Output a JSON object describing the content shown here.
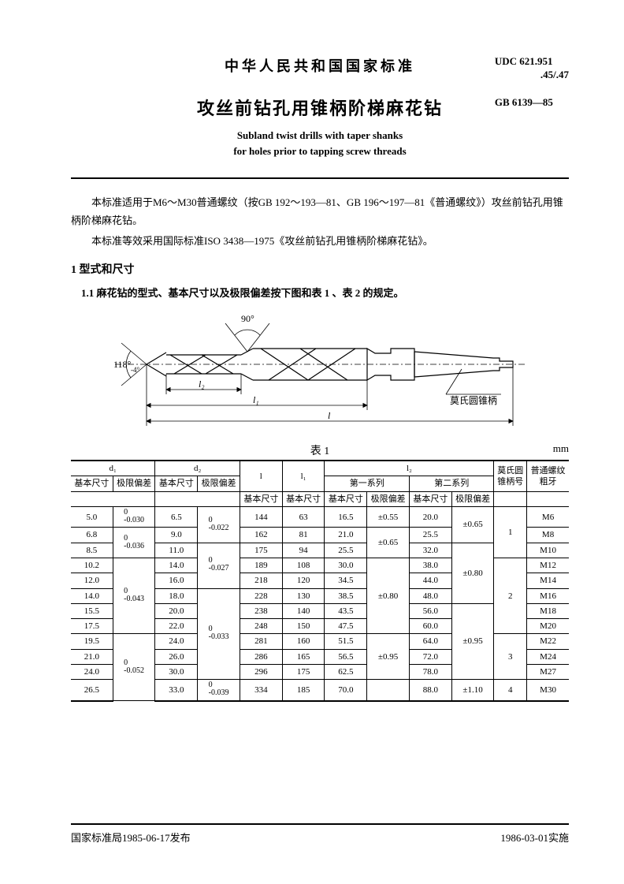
{
  "header": {
    "country_title": "中华人民共和国国家标准",
    "doc_title": "攻丝前钻孔用锥柄阶梯麻花钻",
    "eng_title_l1": "Subland twist drills with taper shanks",
    "eng_title_l2": "for holes prior to tapping screw threads",
    "udc_l1": "UDC 621.951",
    "udc_l2": ".45/.47",
    "gb_code": "GB 6139—85"
  },
  "body": {
    "p1": "本标准适用于M6～M30普通螺纹（按GB 192～193—81、GB 196～197—81《普通螺纹》）攻丝前钻孔用锥柄阶梯麻花钻。",
    "p2": "本标准等效采用国际标准ISO 3438—1975《攻丝前钻孔用锥柄阶梯麻花钻》。",
    "sec1": "1  型式和尺寸",
    "sub11": "1.1  麻花钻的型式、基本尺寸以及极限偏差按下图和表 1 、表 2 的规定。"
  },
  "diagram": {
    "angle_left": "118°",
    "angle_tol": "-4°",
    "angle_top": "90°",
    "dim_l2": "l₂",
    "dim_l1": "l₁",
    "dim_l": "l",
    "callout": "莫氏圆锥柄",
    "stroke": "#000000",
    "bg": "#ffffff"
  },
  "table": {
    "caption": "表 1",
    "unit": "mm",
    "head": {
      "d1": "d₁",
      "d2": "d₂",
      "l": "l",
      "l1": "l₁",
      "l2": "l₂",
      "series1": "第一系列",
      "series2": "第二系列",
      "morse": "莫氏圆",
      "morse2": "锥柄号",
      "thread1": "普通螺纹",
      "thread2": "粗牙",
      "basic": "基本尺寸",
      "tol": "极限偏差"
    },
    "tol_d1": [
      {
        "up": "0",
        "dn": "-0.030",
        "span": 1
      },
      {
        "up": "0",
        "dn": "-0.036",
        "span": 2
      },
      {
        "up": "0",
        "dn": "-0.043",
        "span": 5
      },
      {
        "up": "0",
        "dn": "-0.052",
        "span": 4
      }
    ],
    "tol_d2": [
      {
        "up": "0",
        "dn": "-0.022",
        "span": 2
      },
      {
        "up": "0",
        "dn": "-0.027",
        "span": 3
      },
      {
        "up": "0",
        "dn": "-0.033",
        "span": 6
      },
      {
        "up": "0",
        "dn": "-0.039",
        "span": 1
      }
    ],
    "tol_s1": [
      {
        "val": "±0.55",
        "span": 1
      },
      {
        "val": "±0.65",
        "span": 2
      },
      {
        "val": "±0.80",
        "span": 5
      },
      {
        "val": "±0.95",
        "span": 3
      },
      {
        "val": "",
        "span": 1
      }
    ],
    "tol_s2": [
      {
        "val": "±0.65",
        "span": 2
      },
      {
        "val": "±0.80",
        "span": 4
      },
      {
        "val": "±0.95",
        "span": 5
      },
      {
        "val": "±1.10",
        "span": 1
      }
    ],
    "morse_groups": [
      {
        "val": "1",
        "span": 3
      },
      {
        "val": "2",
        "span": 5
      },
      {
        "val": "3",
        "span": 3
      },
      {
        "val": "4",
        "span": 1
      }
    ],
    "rows": [
      {
        "d1": "5.0",
        "d2": "6.5",
        "l": "144",
        "l1": "63",
        "s1": "16.5",
        "s2": "20.0",
        "thr": "M6"
      },
      {
        "d1": "6.8",
        "d2": "9.0",
        "l": "162",
        "l1": "81",
        "s1": "21.0",
        "s2": "25.5",
        "thr": "M8"
      },
      {
        "d1": "8.5",
        "d2": "11.0",
        "l": "175",
        "l1": "94",
        "s1": "25.5",
        "s2": "32.0",
        "thr": "M10"
      },
      {
        "d1": "10.2",
        "d2": "14.0",
        "l": "189",
        "l1": "108",
        "s1": "30.0",
        "s2": "38.0",
        "thr": "M12"
      },
      {
        "d1": "12.0",
        "d2": "16.0",
        "l": "218",
        "l1": "120",
        "s1": "34.5",
        "s2": "44.0",
        "thr": "M14"
      },
      {
        "d1": "14.0",
        "d2": "18.0",
        "l": "228",
        "l1": "130",
        "s1": "38.5",
        "s2": "48.0",
        "thr": "M16"
      },
      {
        "d1": "15.5",
        "d2": "20.0",
        "l": "238",
        "l1": "140",
        "s1": "43.5",
        "s2": "56.0",
        "thr": "M18"
      },
      {
        "d1": "17.5",
        "d2": "22.0",
        "l": "248",
        "l1": "150",
        "s1": "47.5",
        "s2": "60.0",
        "thr": "M20"
      },
      {
        "d1": "19.5",
        "d2": "24.0",
        "l": "281",
        "l1": "160",
        "s1": "51.5",
        "s2": "64.0",
        "thr": "M22"
      },
      {
        "d1": "21.0",
        "d2": "26.0",
        "l": "286",
        "l1": "165",
        "s1": "56.5",
        "s2": "72.0",
        "thr": "M24"
      },
      {
        "d1": "24.0",
        "d2": "30.0",
        "l": "296",
        "l1": "175",
        "s1": "62.5",
        "s2": "78.0",
        "thr": "M27"
      },
      {
        "d1": "26.5",
        "d2": "33.0",
        "l": "334",
        "l1": "185",
        "s1": "70.0",
        "s2": "88.0",
        "thr": "M30"
      }
    ]
  },
  "footer": {
    "left": "国家标准局1985-06-17发布",
    "right": "1986-03-01实施"
  }
}
